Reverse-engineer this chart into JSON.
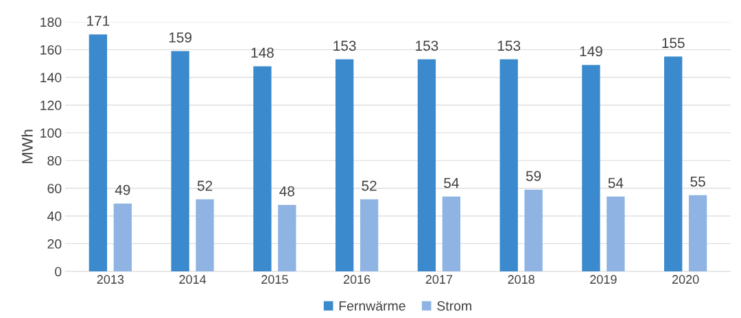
{
  "chart_data": {
    "type": "bar",
    "ylabel": "MWh",
    "categories": [
      "2013",
      "2014",
      "2015",
      "2016",
      "2017",
      "2018",
      "2019",
      "2020"
    ],
    "series": [
      {
        "name": "Fernwärme",
        "color": "#3a8acd",
        "values": [
          171,
          159,
          148,
          153,
          153,
          153,
          149,
          155
        ]
      },
      {
        "name": "Strom",
        "color": "#8fb4e3",
        "values": [
          49,
          52,
          48,
          52,
          54,
          59,
          54,
          55
        ]
      }
    ],
    "ylim": [
      0,
      180
    ],
    "yticks": [
      0,
      20,
      40,
      60,
      80,
      100,
      120,
      140,
      160,
      180
    ],
    "grid": "y",
    "legend": "bottom",
    "data_labels": true
  }
}
